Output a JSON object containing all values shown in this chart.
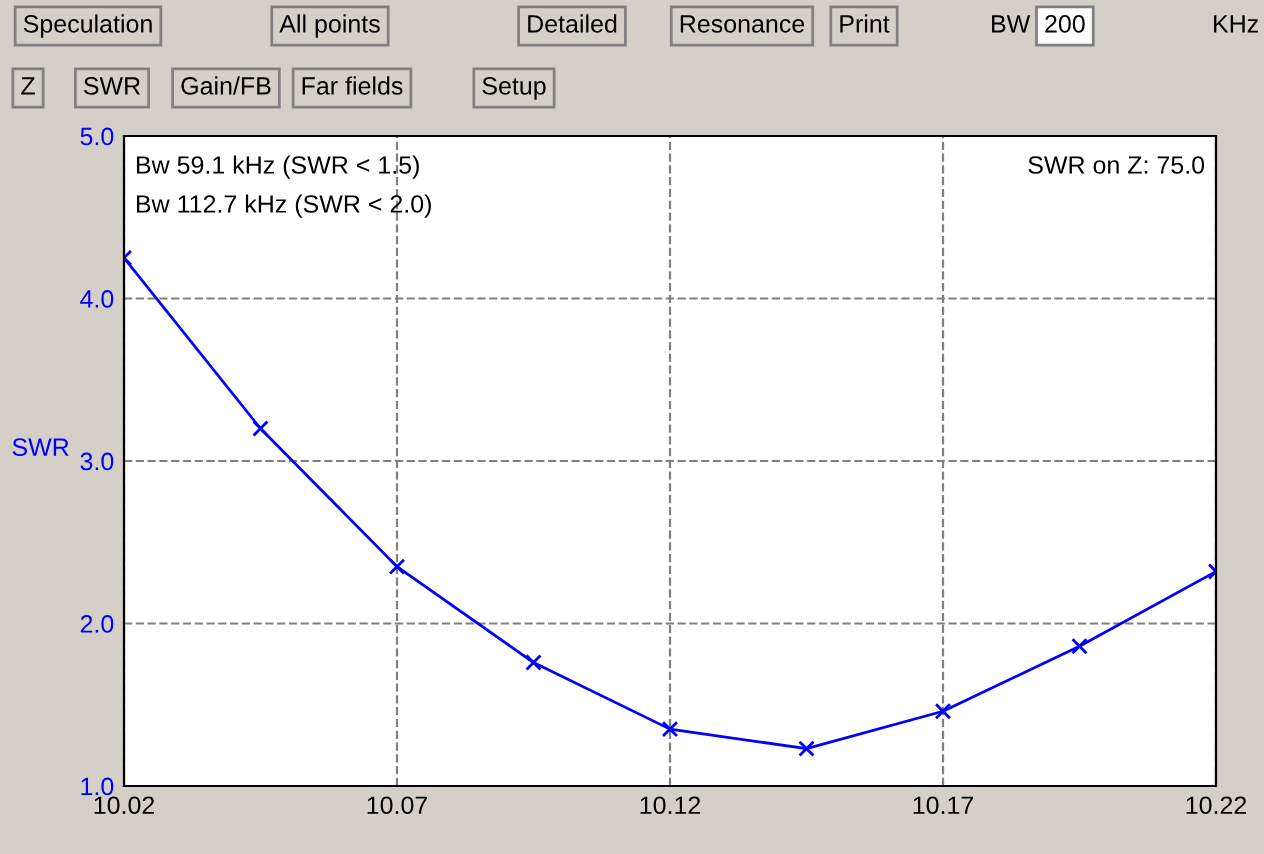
{
  "chart_data": {
    "type": "line",
    "ylabel": "SWR",
    "annotations": [
      "Bw 59.1 kHz (SWR < 1.5)",
      "Bw 112.7 kHz (SWR < 2.0)",
      "SWR on Z: 75.0",
      "Speculation",
      "All points",
      "Detailed",
      "Resonance",
      "Print",
      "BW",
      "200",
      "KHz",
      "Z",
      "SWR",
      "Gain/FB",
      "Far fields",
      "Setup"
    ],
    "x": [
      10.02,
      10.045,
      10.07,
      10.095,
      10.12,
      10.145,
      10.17,
      10.195,
      10.22
    ],
    "series": [
      {
        "color": "#0000ff",
        "values": [
          4.25,
          3.2,
          2.35,
          1.76,
          1.35,
          1.23,
          1.46,
          1.86,
          2.32
        ]
      }
    ],
    "xlim": [
      10.02,
      10.22
    ],
    "xticks": [
      10.02,
      10.07,
      10.12,
      10.17,
      10.22
    ],
    "ylim": [
      1,
      5
    ],
    "yticks": [
      {
        "value": 1,
        "label": "1.0"
      },
      {
        "value": 2,
        "label": "2.0"
      },
      {
        "value": 3,
        "label": "3.0"
      },
      {
        "value": 4,
        "label": "4.0"
      },
      {
        "value": 5,
        "label": "5.0"
      }
    ],
    "grid": true,
    "marker": "cross",
    "line_style": "solid"
  }
}
